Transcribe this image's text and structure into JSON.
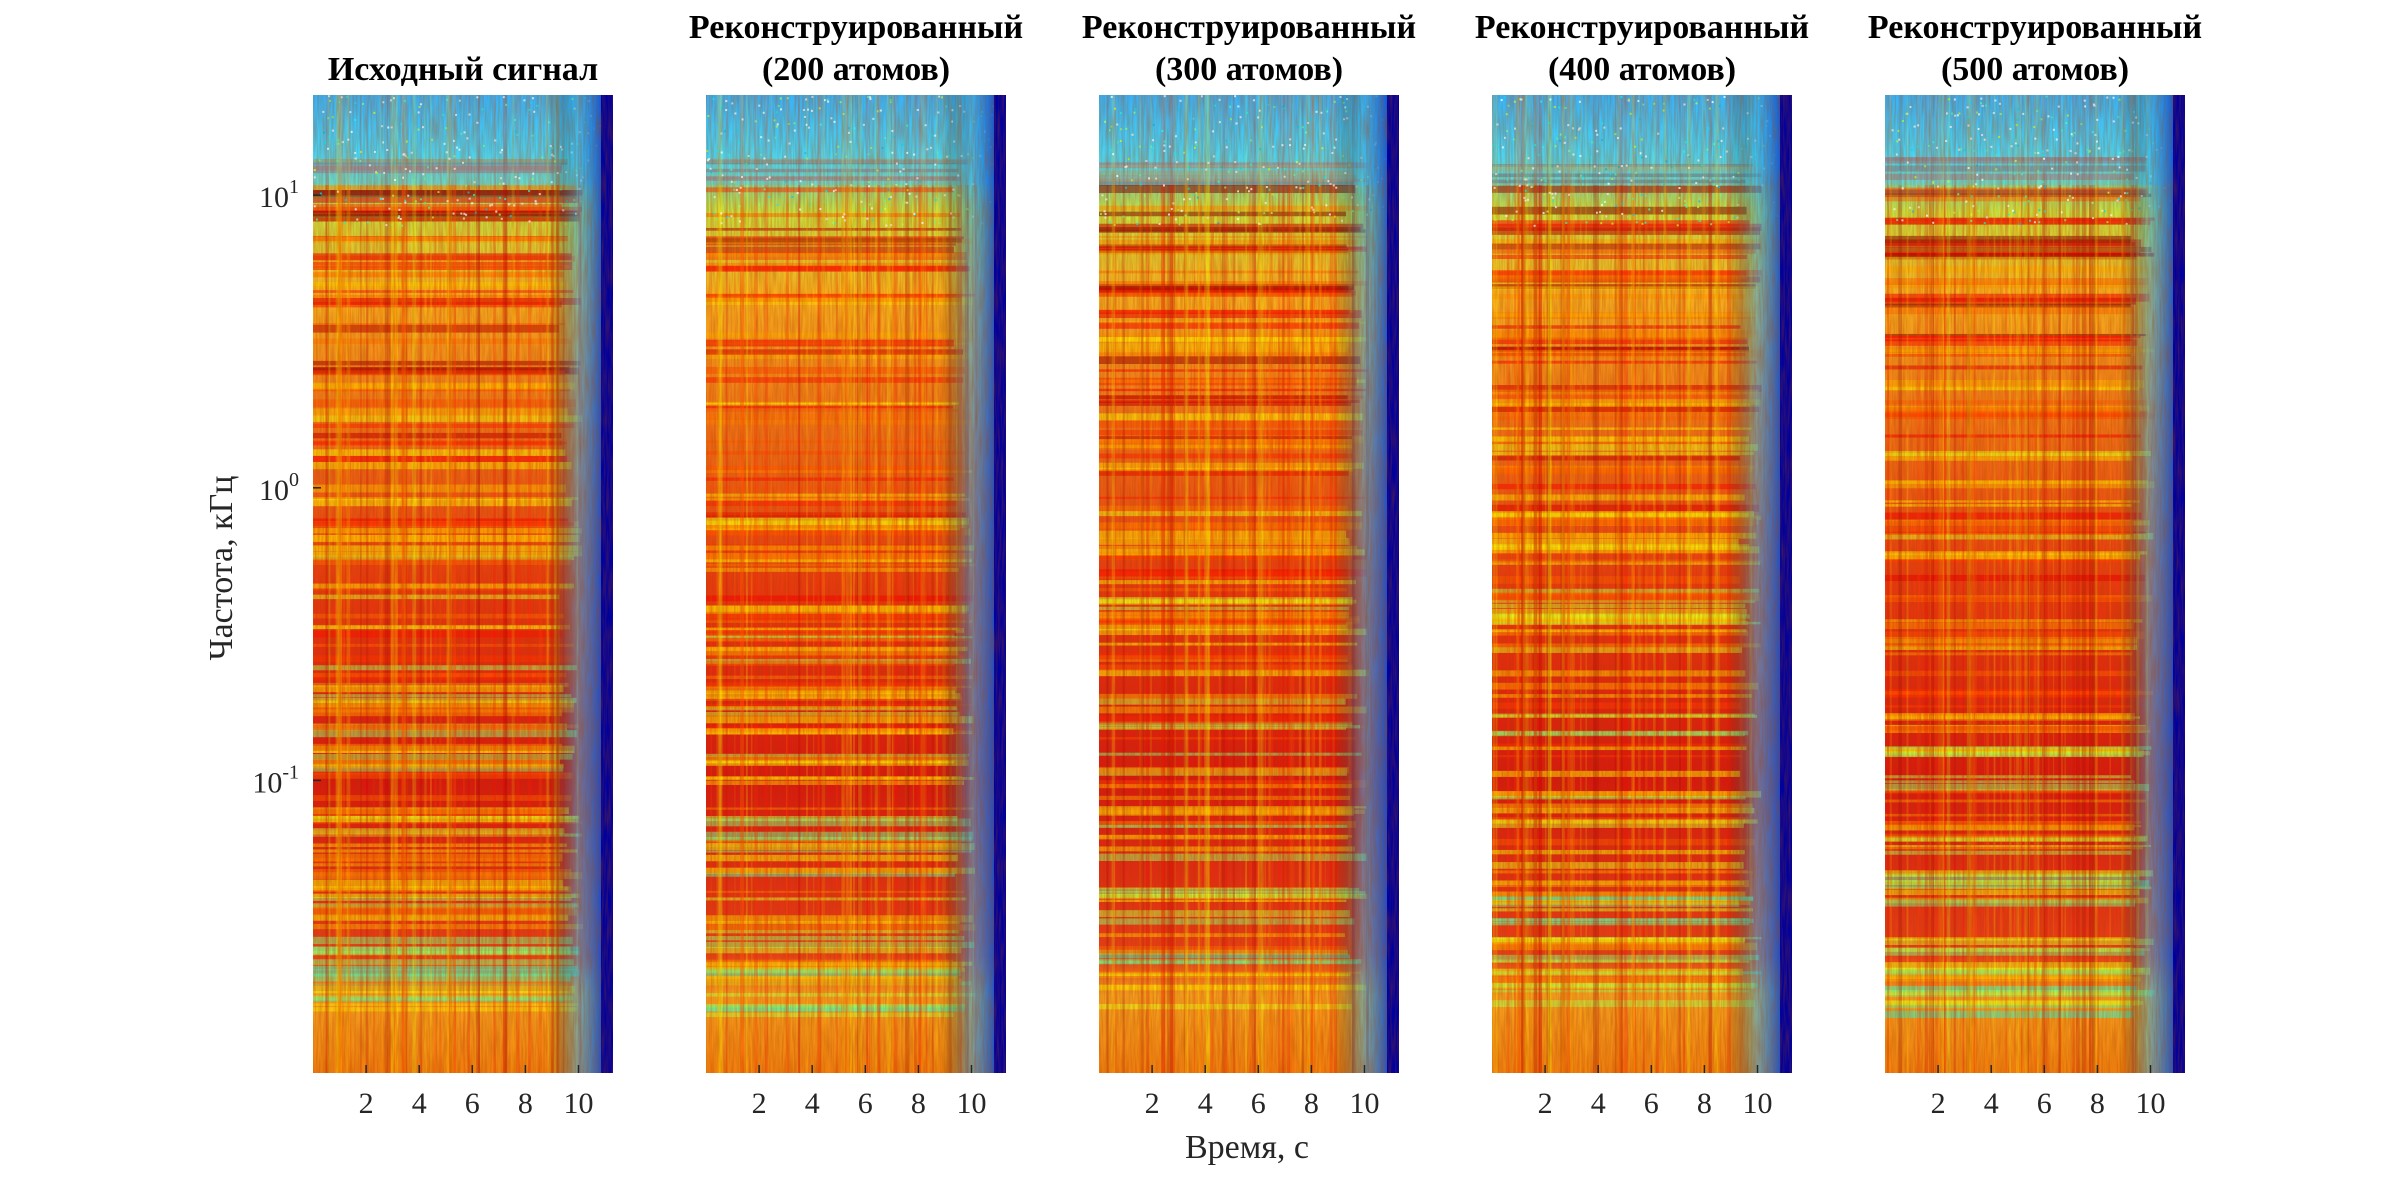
{
  "figure": {
    "xlabel": "Время, с",
    "ylabel": "Частота, кГц"
  },
  "colors": {
    "colormap": "jet",
    "background": "#ffffff",
    "axis_text": "#262626"
  },
  "chart_data": [
    {
      "type": "heatmap",
      "title_lines": [
        "Исходный сигнал"
      ],
      "x_ticks": [
        2,
        4,
        6,
        8,
        10
      ],
      "y_scale": "log",
      "y_ticks": [
        {
          "base": "10",
          "exp": "1",
          "value": 10
        },
        {
          "base": "10",
          "exp": "0",
          "value": 1
        },
        {
          "base": "10",
          "exp": "-1",
          "value": 0.1
        }
      ],
      "xlim": [
        0,
        11.3
      ],
      "ylim": [
        0.01,
        22
      ]
    },
    {
      "type": "heatmap",
      "title_lines": [
        "Реконструированный",
        "(200 атомов)"
      ],
      "x_ticks": [
        2,
        4,
        6,
        8,
        10
      ],
      "y_scale": "log",
      "xlim": [
        0,
        11.3
      ],
      "ylim": [
        0.01,
        22
      ]
    },
    {
      "type": "heatmap",
      "title_lines": [
        "Реконструированный",
        "(300 атомов)"
      ],
      "x_ticks": [
        2,
        4,
        6,
        8,
        10
      ],
      "y_scale": "log",
      "xlim": [
        0,
        11.3
      ],
      "ylim": [
        0.01,
        22
      ]
    },
    {
      "type": "heatmap",
      "title_lines": [
        "Реконструированный",
        "(400 атомов)"
      ],
      "x_ticks": [
        2,
        4,
        6,
        8,
        10
      ],
      "y_scale": "log",
      "xlim": [
        0,
        11.3
      ],
      "ylim": [
        0.01,
        22
      ]
    },
    {
      "type": "heatmap",
      "title_lines": [
        "Реконструированный",
        "(500 атомов)"
      ],
      "x_ticks": [
        2,
        4,
        6,
        8,
        10
      ],
      "y_scale": "log",
      "xlim": [
        0,
        11.3
      ],
      "ylim": [
        0.01,
        22
      ]
    }
  ]
}
